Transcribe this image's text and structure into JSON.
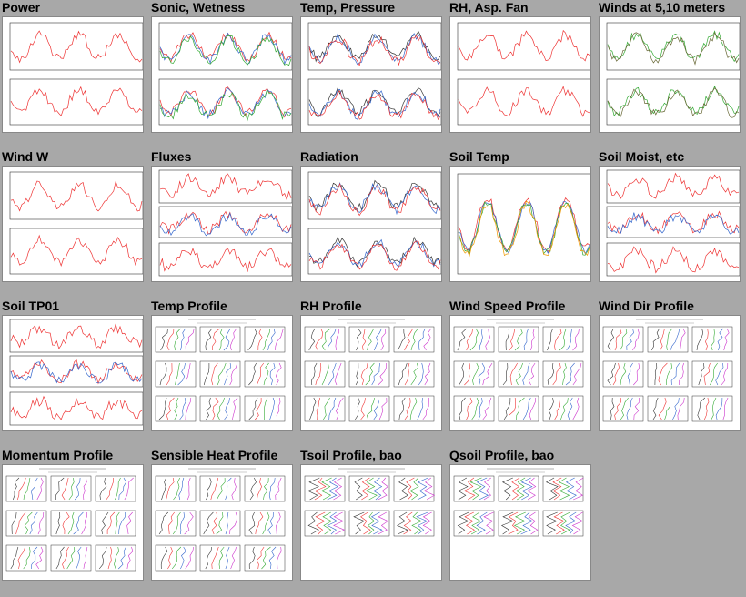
{
  "colors": {
    "background": "#a8a8a8",
    "panel": "#ffffff"
  },
  "thumbnails": [
    {
      "title": "Power"
    },
    {
      "title": "Sonic, Wetness"
    },
    {
      "title": "Temp, Pressure"
    },
    {
      "title": "RH, Asp. Fan"
    },
    {
      "title": "Winds at 5,10 meters"
    },
    {
      "title": "Wind W"
    },
    {
      "title": "Fluxes"
    },
    {
      "title": "Radiation"
    },
    {
      "title": "Soil Temp"
    },
    {
      "title": "Soil Moist, etc"
    },
    {
      "title": "Soil TP01"
    },
    {
      "title": "Temp Profile"
    },
    {
      "title": "RH Profile"
    },
    {
      "title": "Wind Speed Profile"
    },
    {
      "title": "Wind Dir Profile"
    },
    {
      "title": "Momentum Profile"
    },
    {
      "title": "Sensible Heat Profile"
    },
    {
      "title": "Tsoil Profile, bao"
    },
    {
      "title": "Qsoil Profile, bao"
    }
  ]
}
